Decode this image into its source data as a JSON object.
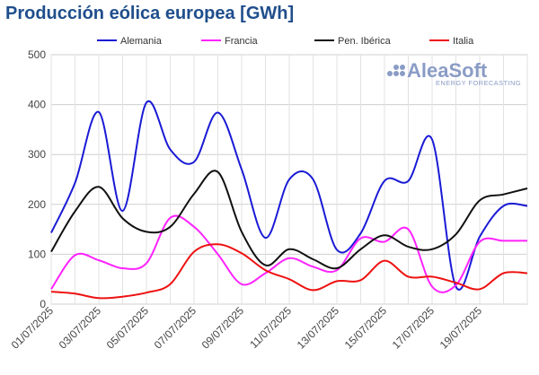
{
  "title": "Producción eólica europea [GWh]",
  "logo": {
    "name": "AleaSoft",
    "tagline": "ENERGY FORECASTING",
    "color": "#8a9cc6"
  },
  "chart_data": {
    "type": "line",
    "title": "Producción eólica europea [GWh]",
    "xlabel": "",
    "ylabel": "",
    "ylim": [
      0,
      500
    ],
    "yticks": [
      0,
      100,
      200,
      300,
      400,
      500
    ],
    "grid": true,
    "legend": "top",
    "x": [
      "01/07/2025",
      "02/07/2025",
      "03/07/2025",
      "04/07/2025",
      "05/07/2025",
      "06/07/2025",
      "07/07/2025",
      "08/07/2025",
      "09/07/2025",
      "10/07/2025",
      "11/07/2025",
      "12/07/2025",
      "13/07/2025",
      "14/07/2025",
      "15/07/2025",
      "16/07/2025",
      "17/07/2025",
      "18/07/2025",
      "19/07/2025",
      "20/07/2025",
      "21/07/2025"
    ],
    "xtick_labels": [
      "01/07/2025",
      "03/07/2025",
      "05/07/2025",
      "07/07/2025",
      "09/07/2025",
      "11/07/2025",
      "13/07/2025",
      "15/07/2025",
      "17/07/2025",
      "19/07/2025"
    ],
    "series": [
      {
        "name": "Alemania",
        "color": "#1a1ad6",
        "values": [
          143,
          243,
          385,
          187,
          404,
          310,
          285,
          384,
          270,
          133,
          250,
          250,
          109,
          142,
          247,
          247,
          330,
          35,
          135,
          197,
          197
        ]
      },
      {
        "name": "Francia",
        "color": "#ff22ff",
        "values": [
          30,
          98,
          88,
          72,
          82,
          173,
          155,
          100,
          40,
          62,
          92,
          75,
          68,
          132,
          125,
          150,
          35,
          38,
          125,
          127,
          127
        ]
      },
      {
        "name": "Pen. Ibérica",
        "color": "#111111",
        "values": [
          105,
          186,
          235,
          172,
          145,
          155,
          221,
          265,
          145,
          78,
          110,
          90,
          72,
          110,
          138,
          115,
          110,
          140,
          208,
          220,
          232
        ]
      },
      {
        "name": "Italia",
        "color": "#ee1111",
        "values": [
          25,
          21,
          12,
          15,
          23,
          40,
          105,
          120,
          102,
          68,
          50,
          28,
          46,
          48,
          87,
          55,
          55,
          43,
          30,
          62,
          62
        ]
      }
    ]
  }
}
